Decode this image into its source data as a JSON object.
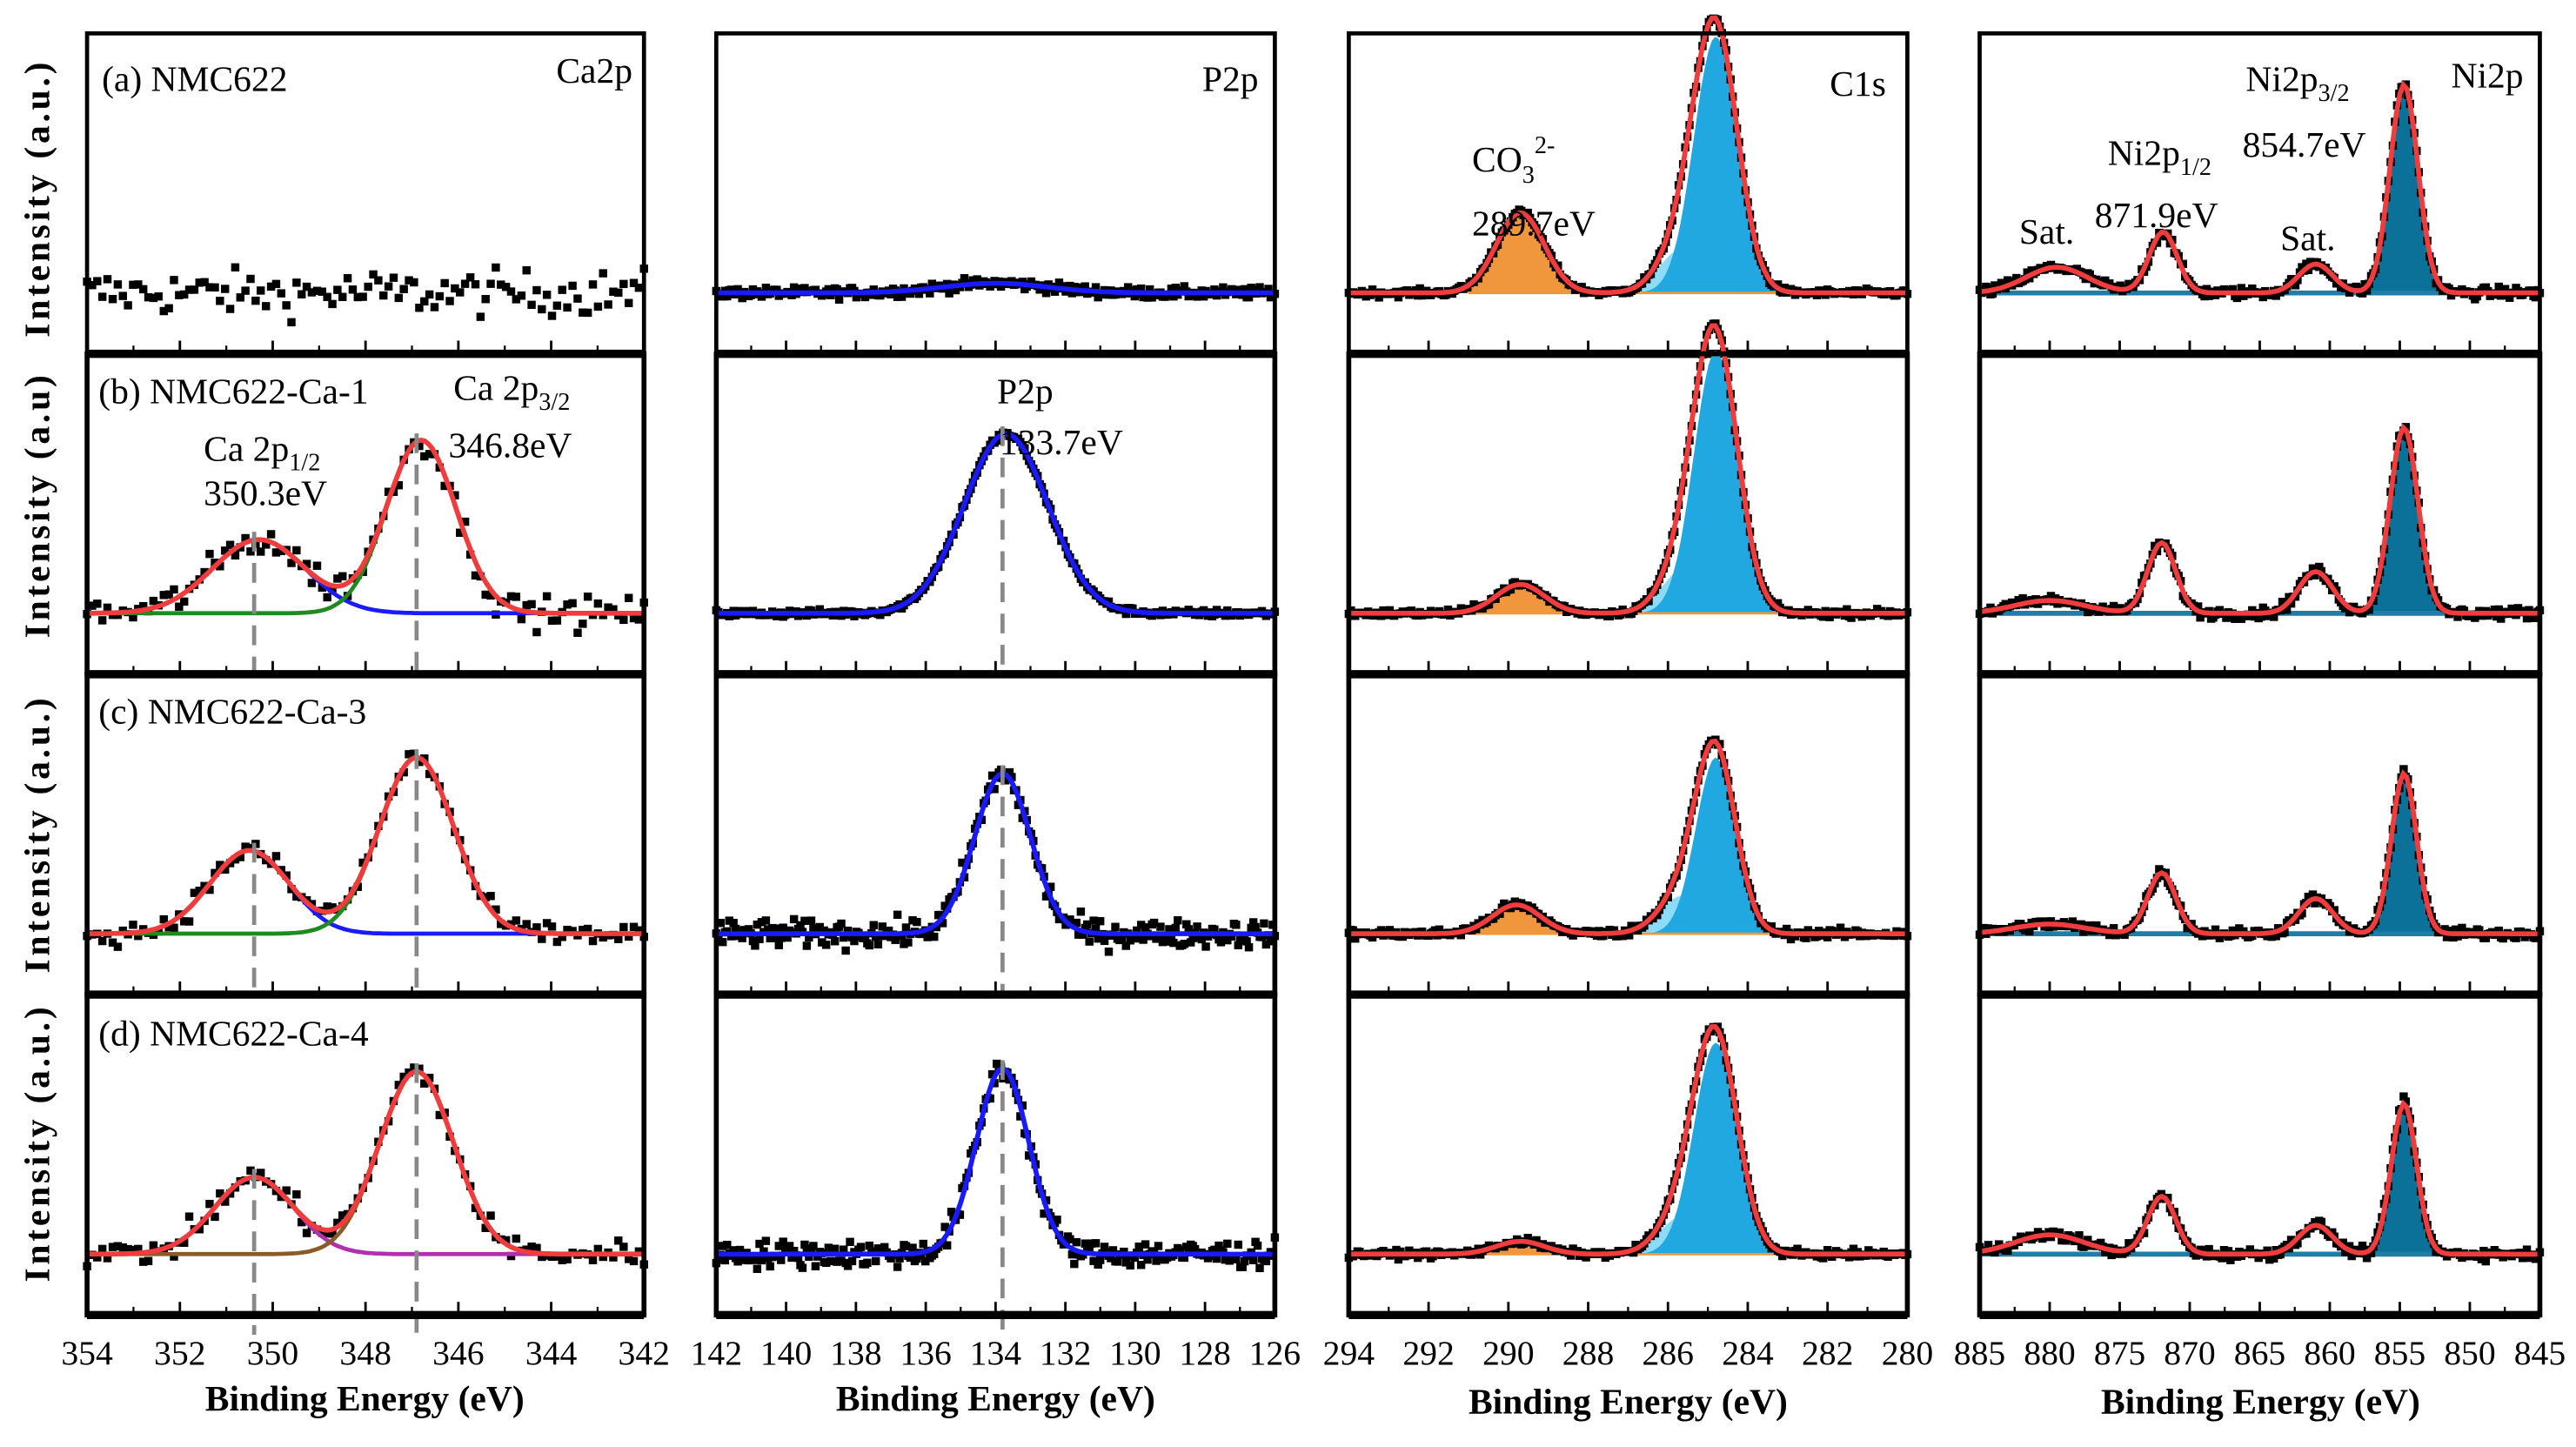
{
  "chart_data": {
    "type": "line",
    "title": "",
    "ylabel": "Intensity (a.u.)",
    "ylabel_row_b": "Intensity (a.u)",
    "xlabel": "Binding Energy (eV)",
    "colors": {
      "fit": "#f03c3c",
      "ca_half": "#1a1aff",
      "ca_3half": "#1f8a1f",
      "ca_half_d": "#b030b0",
      "ca_3half_d": "#8a5a2a",
      "p_fit": "#1a1aff",
      "co3": "#f0963c",
      "c_minor": "#80d8f8",
      "c_main": "#22a8e0",
      "ni_main": "#0b7199",
      "ni_base": "#1f7ea8",
      "dash": "#888888"
    },
    "columns": [
      {
        "name": "Ca2p",
        "xlim": [
          354,
          342
        ],
        "ticks": [
          354,
          352,
          350,
          348,
          346,
          344,
          342
        ]
      },
      {
        "name": "P2p",
        "xlim": [
          142,
          126
        ],
        "ticks": [
          142,
          140,
          138,
          136,
          134,
          132,
          130,
          128,
          126
        ]
      },
      {
        "name": "C1s",
        "xlim": [
          294,
          280
        ],
        "ticks": [
          294,
          292,
          290,
          288,
          286,
          284,
          282,
          280
        ]
      },
      {
        "name": "Ni2p",
        "xlim": [
          885,
          845
        ],
        "ticks": [
          885,
          880,
          875,
          870,
          865,
          860,
          855,
          850,
          845
        ]
      }
    ],
    "rows": [
      {
        "label": "(a) NMC622",
        "panels": [
          {
            "noise": 0.05,
            "peaks": []
          },
          {
            "noise": 0.012,
            "peaks": [
              {
                "center": 134.0,
                "amp": 0.03,
                "sigma": 1.5,
                "role": "fit"
              }
            ]
          },
          {
            "noise": 0.008,
            "peaks": [
              {
                "center": 289.7,
                "amp": 0.25,
                "sigma": 0.6,
                "role": "co3"
              },
              {
                "center": 285.6,
                "amp": 0.14,
                "sigma": 0.6,
                "role": "c_minor"
              },
              {
                "center": 284.8,
                "amp": 0.8,
                "sigma": 0.55,
                "role": "c_main"
              }
            ]
          },
          {
            "noise": 0.012,
            "peaks": [
              {
                "center": 879.5,
                "amp": 0.08,
                "sigma": 2.2,
                "role": "sat"
              },
              {
                "center": 871.9,
                "amp": 0.19,
                "sigma": 1.0,
                "role": "ni_half"
              },
              {
                "center": 861.0,
                "amp": 0.09,
                "sigma": 1.2,
                "role": "sat"
              },
              {
                "center": 854.7,
                "amp": 0.65,
                "sigma": 1.0,
                "role": "ni_main"
              }
            ]
          }
        ]
      },
      {
        "label": "(b) NMC622-Ca-1",
        "panels": [
          {
            "noise": 0.035,
            "peaks": [
              {
                "center": 350.3,
                "amp": 0.23,
                "sigma": 1.0,
                "role": "ca_half"
              },
              {
                "center": 346.8,
                "amp": 0.54,
                "sigma": 0.75,
                "role": "ca_3half"
              }
            ]
          },
          {
            "noise": 0.008,
            "peaks": [
              {
                "center": 133.7,
                "amp": 0.56,
                "sigma": 1.2,
                "role": "p"
              }
            ]
          },
          {
            "noise": 0.008,
            "peaks": [
              {
                "center": 289.7,
                "amp": 0.09,
                "sigma": 0.6,
                "role": "co3"
              },
              {
                "center": 285.5,
                "amp": 0.15,
                "sigma": 0.6,
                "role": "c_minor"
              },
              {
                "center": 284.8,
                "amp": 0.82,
                "sigma": 0.55,
                "role": "c_main"
              }
            ]
          },
          {
            "noise": 0.012,
            "peaks": [
              {
                "center": 880.0,
                "amp": 0.04,
                "sigma": 2.5,
                "role": "sat"
              },
              {
                "center": 872.0,
                "amp": 0.22,
                "sigma": 1.0,
                "role": "ni_half"
              },
              {
                "center": 861.0,
                "amp": 0.13,
                "sigma": 1.2,
                "role": "sat"
              },
              {
                "center": 854.7,
                "amp": 0.58,
                "sigma": 1.0,
                "role": "ni_main"
              }
            ]
          }
        ]
      },
      {
        "label": "(c) NMC622-Ca-3",
        "panels": [
          {
            "noise": 0.025,
            "peaks": [
              {
                "center": 350.5,
                "amp": 0.26,
                "sigma": 0.85,
                "role": "ca_half"
              },
              {
                "center": 346.9,
                "amp": 0.55,
                "sigma": 0.8,
                "role": "ca_3half"
              }
            ]
          },
          {
            "noise": 0.03,
            "peaks": [
              {
                "center": 133.8,
                "amp": 0.5,
                "sigma": 0.8,
                "role": "p"
              }
            ]
          },
          {
            "noise": 0.01,
            "peaks": [
              {
                "center": 289.8,
                "amp": 0.09,
                "sigma": 0.6,
                "role": "co3"
              },
              {
                "center": 285.6,
                "amp": 0.12,
                "sigma": 0.6,
                "role": "c_minor"
              },
              {
                "center": 284.8,
                "amp": 0.55,
                "sigma": 0.5,
                "role": "c_main"
              }
            ]
          },
          {
            "noise": 0.012,
            "peaks": [
              {
                "center": 880.0,
                "amp": 0.03,
                "sigma": 2.5,
                "role": "sat"
              },
              {
                "center": 872.0,
                "amp": 0.19,
                "sigma": 1.0,
                "role": "ni_half"
              },
              {
                "center": 861.0,
                "amp": 0.11,
                "sigma": 1.2,
                "role": "sat"
              },
              {
                "center": 854.7,
                "amp": 0.5,
                "sigma": 0.9,
                "role": "ni_main"
              }
            ]
          }
        ]
      },
      {
        "label": "(d) NMC622-Ca-4",
        "panels": [
          {
            "noise": 0.03,
            "peaks": [
              {
                "center": 350.4,
                "amp": 0.24,
                "sigma": 0.85,
                "role": "ca_half_d"
              },
              {
                "center": 346.9,
                "amp": 0.57,
                "sigma": 0.8,
                "role": "ca_3half_d"
              }
            ]
          },
          {
            "noise": 0.03,
            "peaks": [
              {
                "center": 133.8,
                "amp": 0.58,
                "sigma": 0.75,
                "role": "p"
              }
            ]
          },
          {
            "noise": 0.008,
            "peaks": [
              {
                "center": 289.7,
                "amp": 0.04,
                "sigma": 0.6,
                "role": "co3"
              },
              {
                "center": 285.6,
                "amp": 0.12,
                "sigma": 0.6,
                "role": "c_minor"
              },
              {
                "center": 284.8,
                "amp": 0.66,
                "sigma": 0.55,
                "role": "c_main"
              }
            ]
          },
          {
            "noise": 0.012,
            "peaks": [
              {
                "center": 880.0,
                "amp": 0.06,
                "sigma": 2.5,
                "role": "sat"
              },
              {
                "center": 872.0,
                "amp": 0.18,
                "sigma": 1.0,
                "role": "ni_half"
              },
              {
                "center": 861.0,
                "amp": 0.09,
                "sigma": 1.2,
                "role": "sat"
              },
              {
                "center": 854.7,
                "amp": 0.47,
                "sigma": 0.9,
                "role": "ni_main"
              }
            ]
          }
        ]
      }
    ],
    "dashed_lines": {
      "Ca2p": [
        350.4,
        346.9
      ],
      "P2p": [
        133.8
      ]
    },
    "annotations": {
      "ca_half": {
        "main": "Ca 2p",
        "sub": "1/2",
        "value": "350.3eV"
      },
      "ca_3half": {
        "main": "Ca 2p",
        "sub": "3/2",
        "value": "346.8eV"
      },
      "p2p_b": {
        "main": "P2p",
        "value": "133.7eV"
      },
      "co3": {
        "main": "CO",
        "sub": "3",
        "sup": "2-",
        "value": "289.7eV"
      },
      "ni_half": {
        "main": "Ni2p",
        "sub": "1/2",
        "value": "871.9eV"
      },
      "ni_3half": {
        "main": "Ni2p",
        "sub": "3/2",
        "value": "854.7eV"
      },
      "sat": "Sat."
    }
  }
}
